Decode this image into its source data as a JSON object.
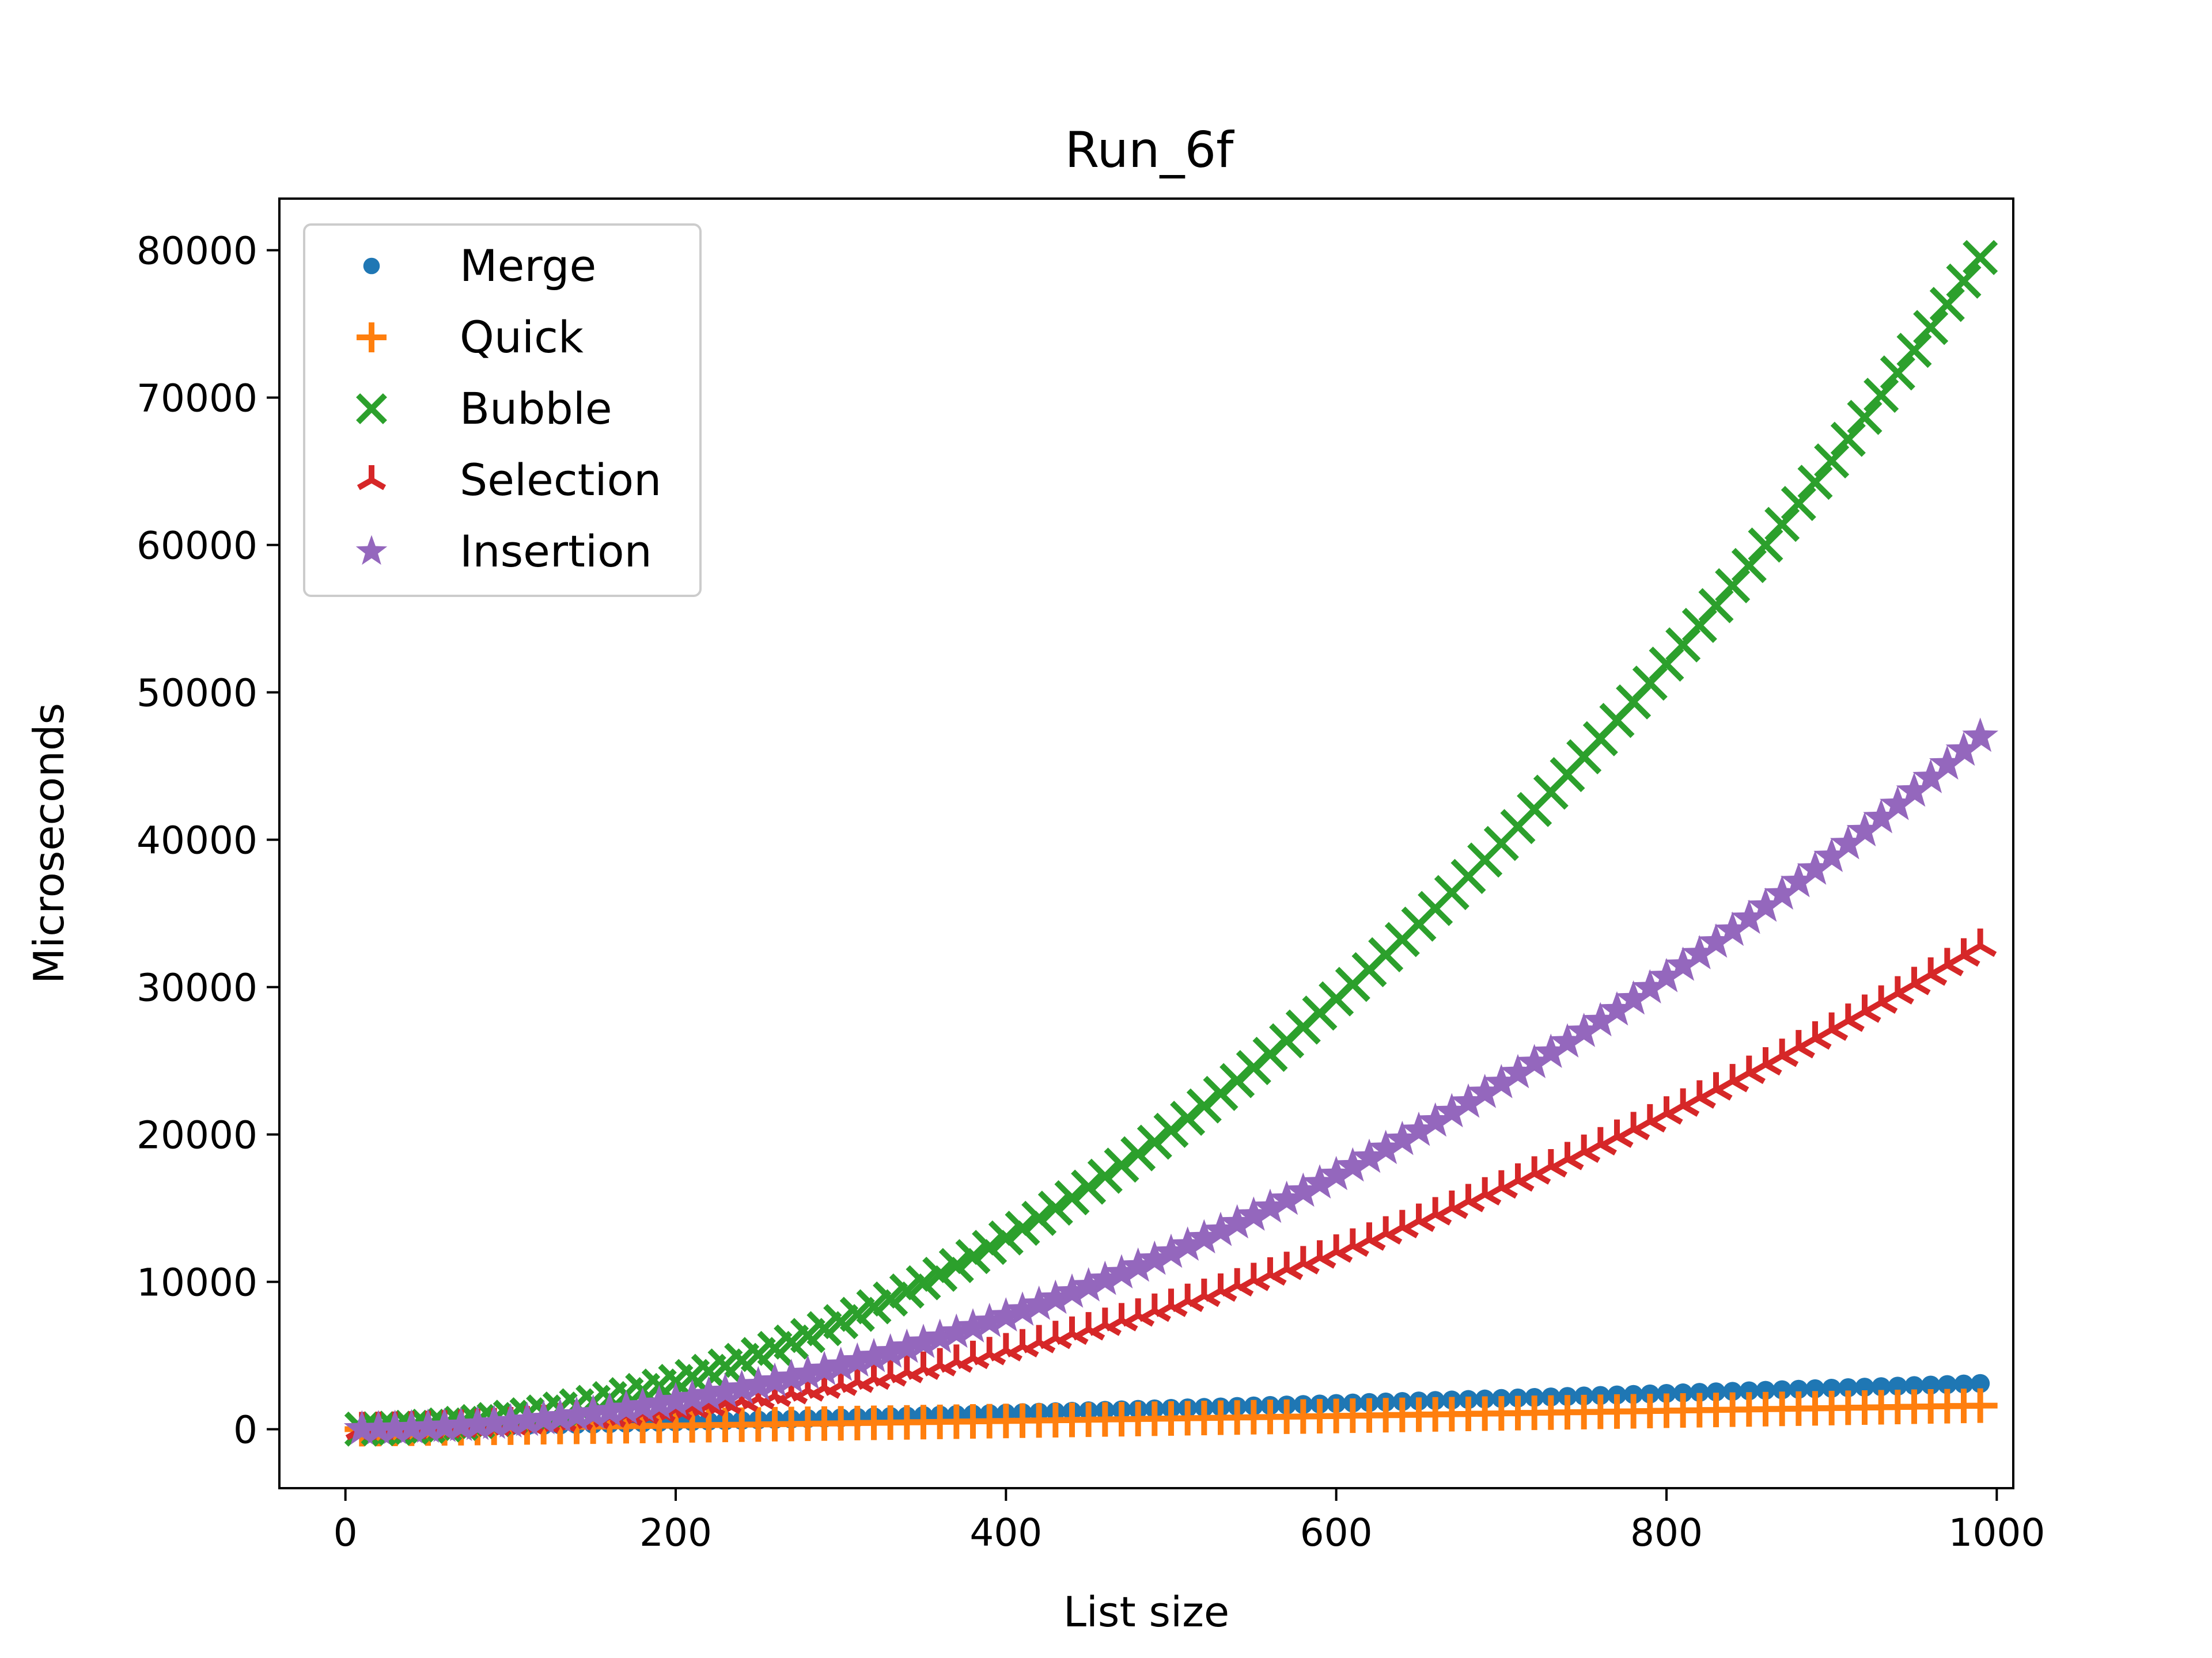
{
  "chart_data": {
    "type": "scatter",
    "title": "Run_6f",
    "xlabel": "List size",
    "ylabel": "Microseconds",
    "xlim": [
      -40,
      1010
    ],
    "ylim": [
      -4000,
      83500
    ],
    "xticks": [
      0,
      200,
      400,
      600,
      800,
      1000
    ],
    "yticks": [
      0,
      10000,
      20000,
      30000,
      40000,
      50000,
      60000,
      70000,
      80000
    ],
    "grid": false,
    "legend_position": "top-left",
    "x_range": {
      "start": 10,
      "step": 10,
      "count": 99
    },
    "series": [
      {
        "name": "Merge",
        "marker": "circle",
        "color": "#1f77b4",
        "model": {
          "kind": "nlogn",
          "y_at_max_x": 3100
        }
      },
      {
        "name": "Quick",
        "marker": "plus",
        "color": "#ff7f0e",
        "model": {
          "kind": "nlogn",
          "y_at_max_x": 1600
        }
      },
      {
        "name": "Bubble",
        "marker": "x",
        "color": "#2ca02c",
        "model": {
          "kind": "quadratic",
          "y_at_max_x": 79500
        }
      },
      {
        "name": "Selection",
        "marker": "tri",
        "color": "#d62728",
        "model": {
          "kind": "quadratic",
          "y_at_max_x": 32800
        }
      },
      {
        "name": "Insertion",
        "marker": "star",
        "color": "#9467bd",
        "model": {
          "kind": "quadratic",
          "y_at_max_x": 47000
        }
      }
    ]
  }
}
